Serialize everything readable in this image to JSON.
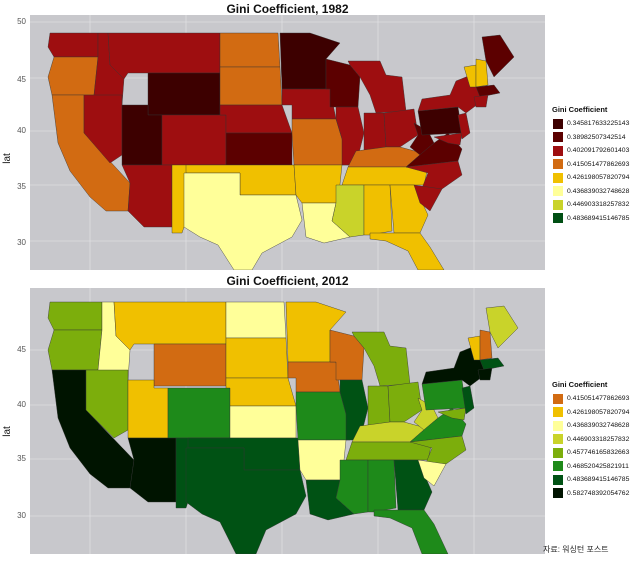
{
  "map_1982": {
    "title": "Gini Coefficient, 1982",
    "y_axis_label": "lat",
    "y_ticks": [
      "50",
      "45",
      "40",
      "35",
      "30"
    ],
    "legend_title": "Gini Coefficient",
    "legend": [
      {
        "value": "0.345817633225143",
        "color": "#3d0000"
      },
      {
        "value": "0.38982507342514",
        "color": "#5c0000"
      },
      {
        "value": "0.402091792601403",
        "color": "#9e0e10"
      },
      {
        "value": "0.415051477862693",
        "color": "#d26b12"
      },
      {
        "value": "0.426198057820794",
        "color": "#f0c000"
      },
      {
        "value": "0.436839032748628",
        "color": "#ffff99"
      },
      {
        "value": "0.446903318257832",
        "color": "#c9d32a"
      },
      {
        "value": "0.483689415146785",
        "color": "#004f14"
      }
    ]
  },
  "map_2012": {
    "title": "Gini Coefficient, 2012",
    "y_axis_label": "lat",
    "y_ticks": [
      "45",
      "40",
      "35",
      "30"
    ],
    "legend_title": "Gini Coefficient",
    "legend": [
      {
        "value": "0.415051477862693",
        "color": "#d26b12"
      },
      {
        "value": "0.426198057820794",
        "color": "#f0c000"
      },
      {
        "value": "0.436839032748628",
        "color": "#ffff99"
      },
      {
        "value": "0.446903318257832",
        "color": "#c9d32a"
      },
      {
        "value": "0.457746165832663",
        "color": "#7cae0c"
      },
      {
        "value": "0.468520425821911",
        "color": "#1e8a1a"
      },
      {
        "value": "0.483689415146785",
        "color": "#005214"
      },
      {
        "value": "0.582748392054762",
        "color": "#001400"
      }
    ]
  },
  "source_note": "자료: 워싱턴 포스트"
}
